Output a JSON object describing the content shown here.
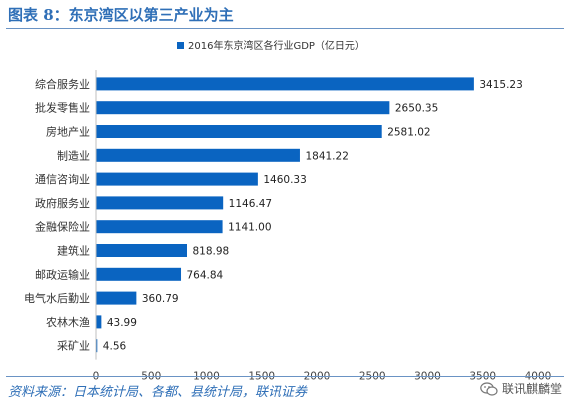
{
  "header": {
    "title": "图表 8：东京湾区以第三产业为主"
  },
  "footer": {
    "source": "资料来源：日本统计局、各都、县统计局，联讯证券",
    "watermark": "联讯麒麟堂"
  },
  "icons": {
    "watermark_icon": "wechat-icon"
  },
  "chart_data": {
    "type": "bar",
    "orientation": "horizontal",
    "categories": [
      "综合服务业",
      "批发零售业",
      "房地产业",
      "制造业",
      "通信咨询业",
      "政府服务业",
      "金融保险业",
      "建筑业",
      "邮政运输业",
      "电气水后勤业",
      "农林木渔",
      "采矿业"
    ],
    "series": [
      {
        "name": "2016年东京湾区各行业GDP（亿日元）",
        "color": "#0a64c1",
        "values": [
          3415.23,
          2650.35,
          2581.02,
          1841.22,
          1460.33,
          1146.47,
          1141.0,
          818.98,
          764.84,
          360.79,
          43.99,
          4.56
        ],
        "labels": [
          "3415.23",
          "2650.35",
          "2581.02",
          "1841.22",
          "1460.33",
          "1146.47",
          "1141.00",
          "818.98",
          "764.84",
          "360.79",
          "43.99",
          "4.56"
        ]
      }
    ],
    "xlim": [
      0,
      4000
    ],
    "xticks": [
      0,
      500,
      1000,
      1500,
      2000,
      2500,
      3000,
      3500,
      4000
    ],
    "grid": false,
    "legend_position": "top-center"
  }
}
